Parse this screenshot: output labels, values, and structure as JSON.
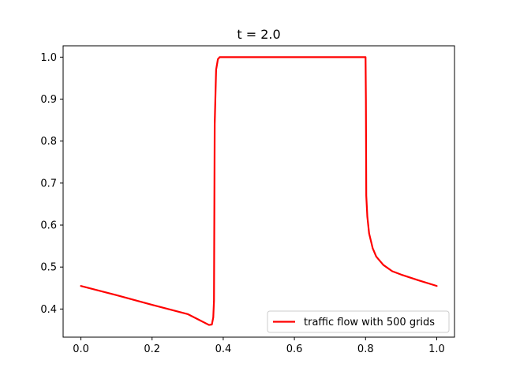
{
  "chart_data": {
    "type": "line",
    "title": "t = 2.0",
    "xlabel": "",
    "ylabel": "",
    "xlim": [
      -0.05,
      1.05
    ],
    "ylim": [
      0.333,
      1.027
    ],
    "xticks": [
      0.0,
      0.2,
      0.4,
      0.6,
      0.8,
      1.0
    ],
    "xtick_labels": [
      "0.0",
      "0.2",
      "0.4",
      "0.6",
      "0.8",
      "1.0"
    ],
    "yticks": [
      0.4,
      0.5,
      0.6,
      0.7,
      0.8,
      0.9,
      1.0
    ],
    "ytick_labels": [
      "0.4",
      "0.5",
      "0.6",
      "0.7",
      "0.8",
      "0.9",
      "1.0"
    ],
    "grid": false,
    "legend_position": "bottom-right",
    "series": [
      {
        "name": "traffic flow with 500 grids",
        "color": "#ff0000",
        "x": [
          0.0,
          0.1,
          0.2,
          0.3,
          0.36,
          0.368,
          0.372,
          0.374,
          0.376,
          0.38,
          0.385,
          0.39,
          0.4,
          0.5,
          0.6,
          0.7,
          0.8,
          0.801,
          0.802,
          0.805,
          0.81,
          0.82,
          0.83,
          0.85,
          0.875,
          0.9,
          0.95,
          1.0
        ],
        "y": [
          0.455,
          0.433,
          0.41,
          0.388,
          0.362,
          0.363,
          0.38,
          0.42,
          0.84,
          0.97,
          0.995,
          1.0,
          1.0,
          1.0,
          1.0,
          1.0,
          1.0,
          0.9,
          0.67,
          0.62,
          0.58,
          0.545,
          0.525,
          0.505,
          0.49,
          0.482,
          0.468,
          0.455
        ]
      }
    ]
  }
}
